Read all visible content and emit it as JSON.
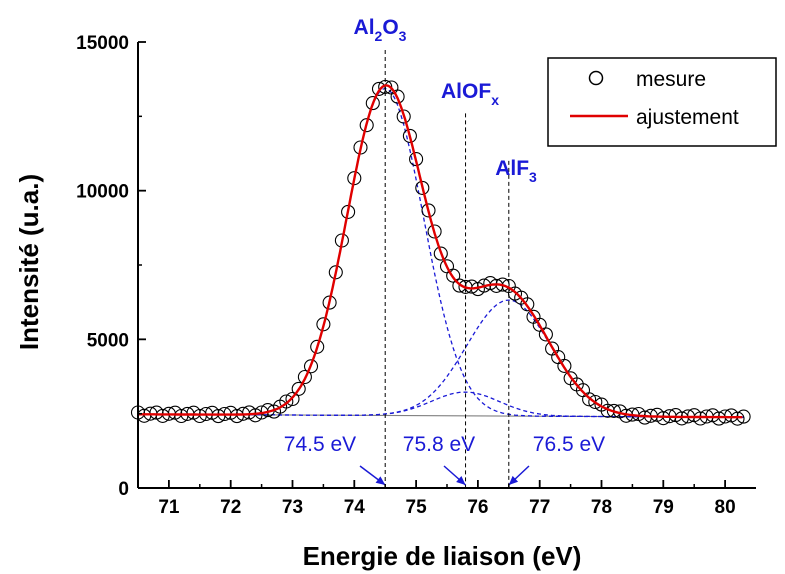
{
  "chart_data": {
    "type": "line",
    "xlabel": "Energie de liaison (eV)",
    "ylabel": "Intensité (u.a.)",
    "xlim": [
      70.5,
      80.5
    ],
    "ylim": [
      0,
      15000
    ],
    "xticks": [
      "71",
      "72",
      "73",
      "74",
      "75",
      "76",
      "77",
      "78",
      "79",
      "80"
    ],
    "yticks": [
      "0",
      "5000",
      "10000",
      "15000"
    ],
    "legend_position": "top-right",
    "grid": false,
    "colors": {
      "measure": "#000000",
      "fit": "#e00000",
      "components": "#1a1ad6",
      "annotations": "#1a1ad6",
      "background": "#808080"
    },
    "legend": {
      "measure": "mesure",
      "fit": "ajustement"
    },
    "peaks": [
      {
        "name": "Al2O3",
        "base": "Al",
        "sub1": "2",
        "mid": "O",
        "sub2": "3",
        "position": 74.5,
        "energy_label": "74.5 eV",
        "amplitude": 11000,
        "sigma": 0.62
      },
      {
        "name": "AlOFx",
        "base": "AlOF",
        "sub1": "x",
        "mid": "",
        "sub2": "",
        "position": 75.8,
        "energy_label": "75.8 eV",
        "amplitude": 800,
        "sigma": 0.55
      },
      {
        "name": "AlF3",
        "base": "AlF",
        "sub1": "3",
        "mid": "",
        "sub2": "",
        "position": 76.5,
        "energy_label": "76.5 eV",
        "amplitude": 3900,
        "sigma": 0.68
      }
    ],
    "background_line": {
      "x": [
        70.5,
        80.3
      ],
      "y": [
        2480,
        2380
      ]
    },
    "x_measure_range": [
      70.5,
      80.3
    ],
    "x_measure_step": 0.1
  }
}
